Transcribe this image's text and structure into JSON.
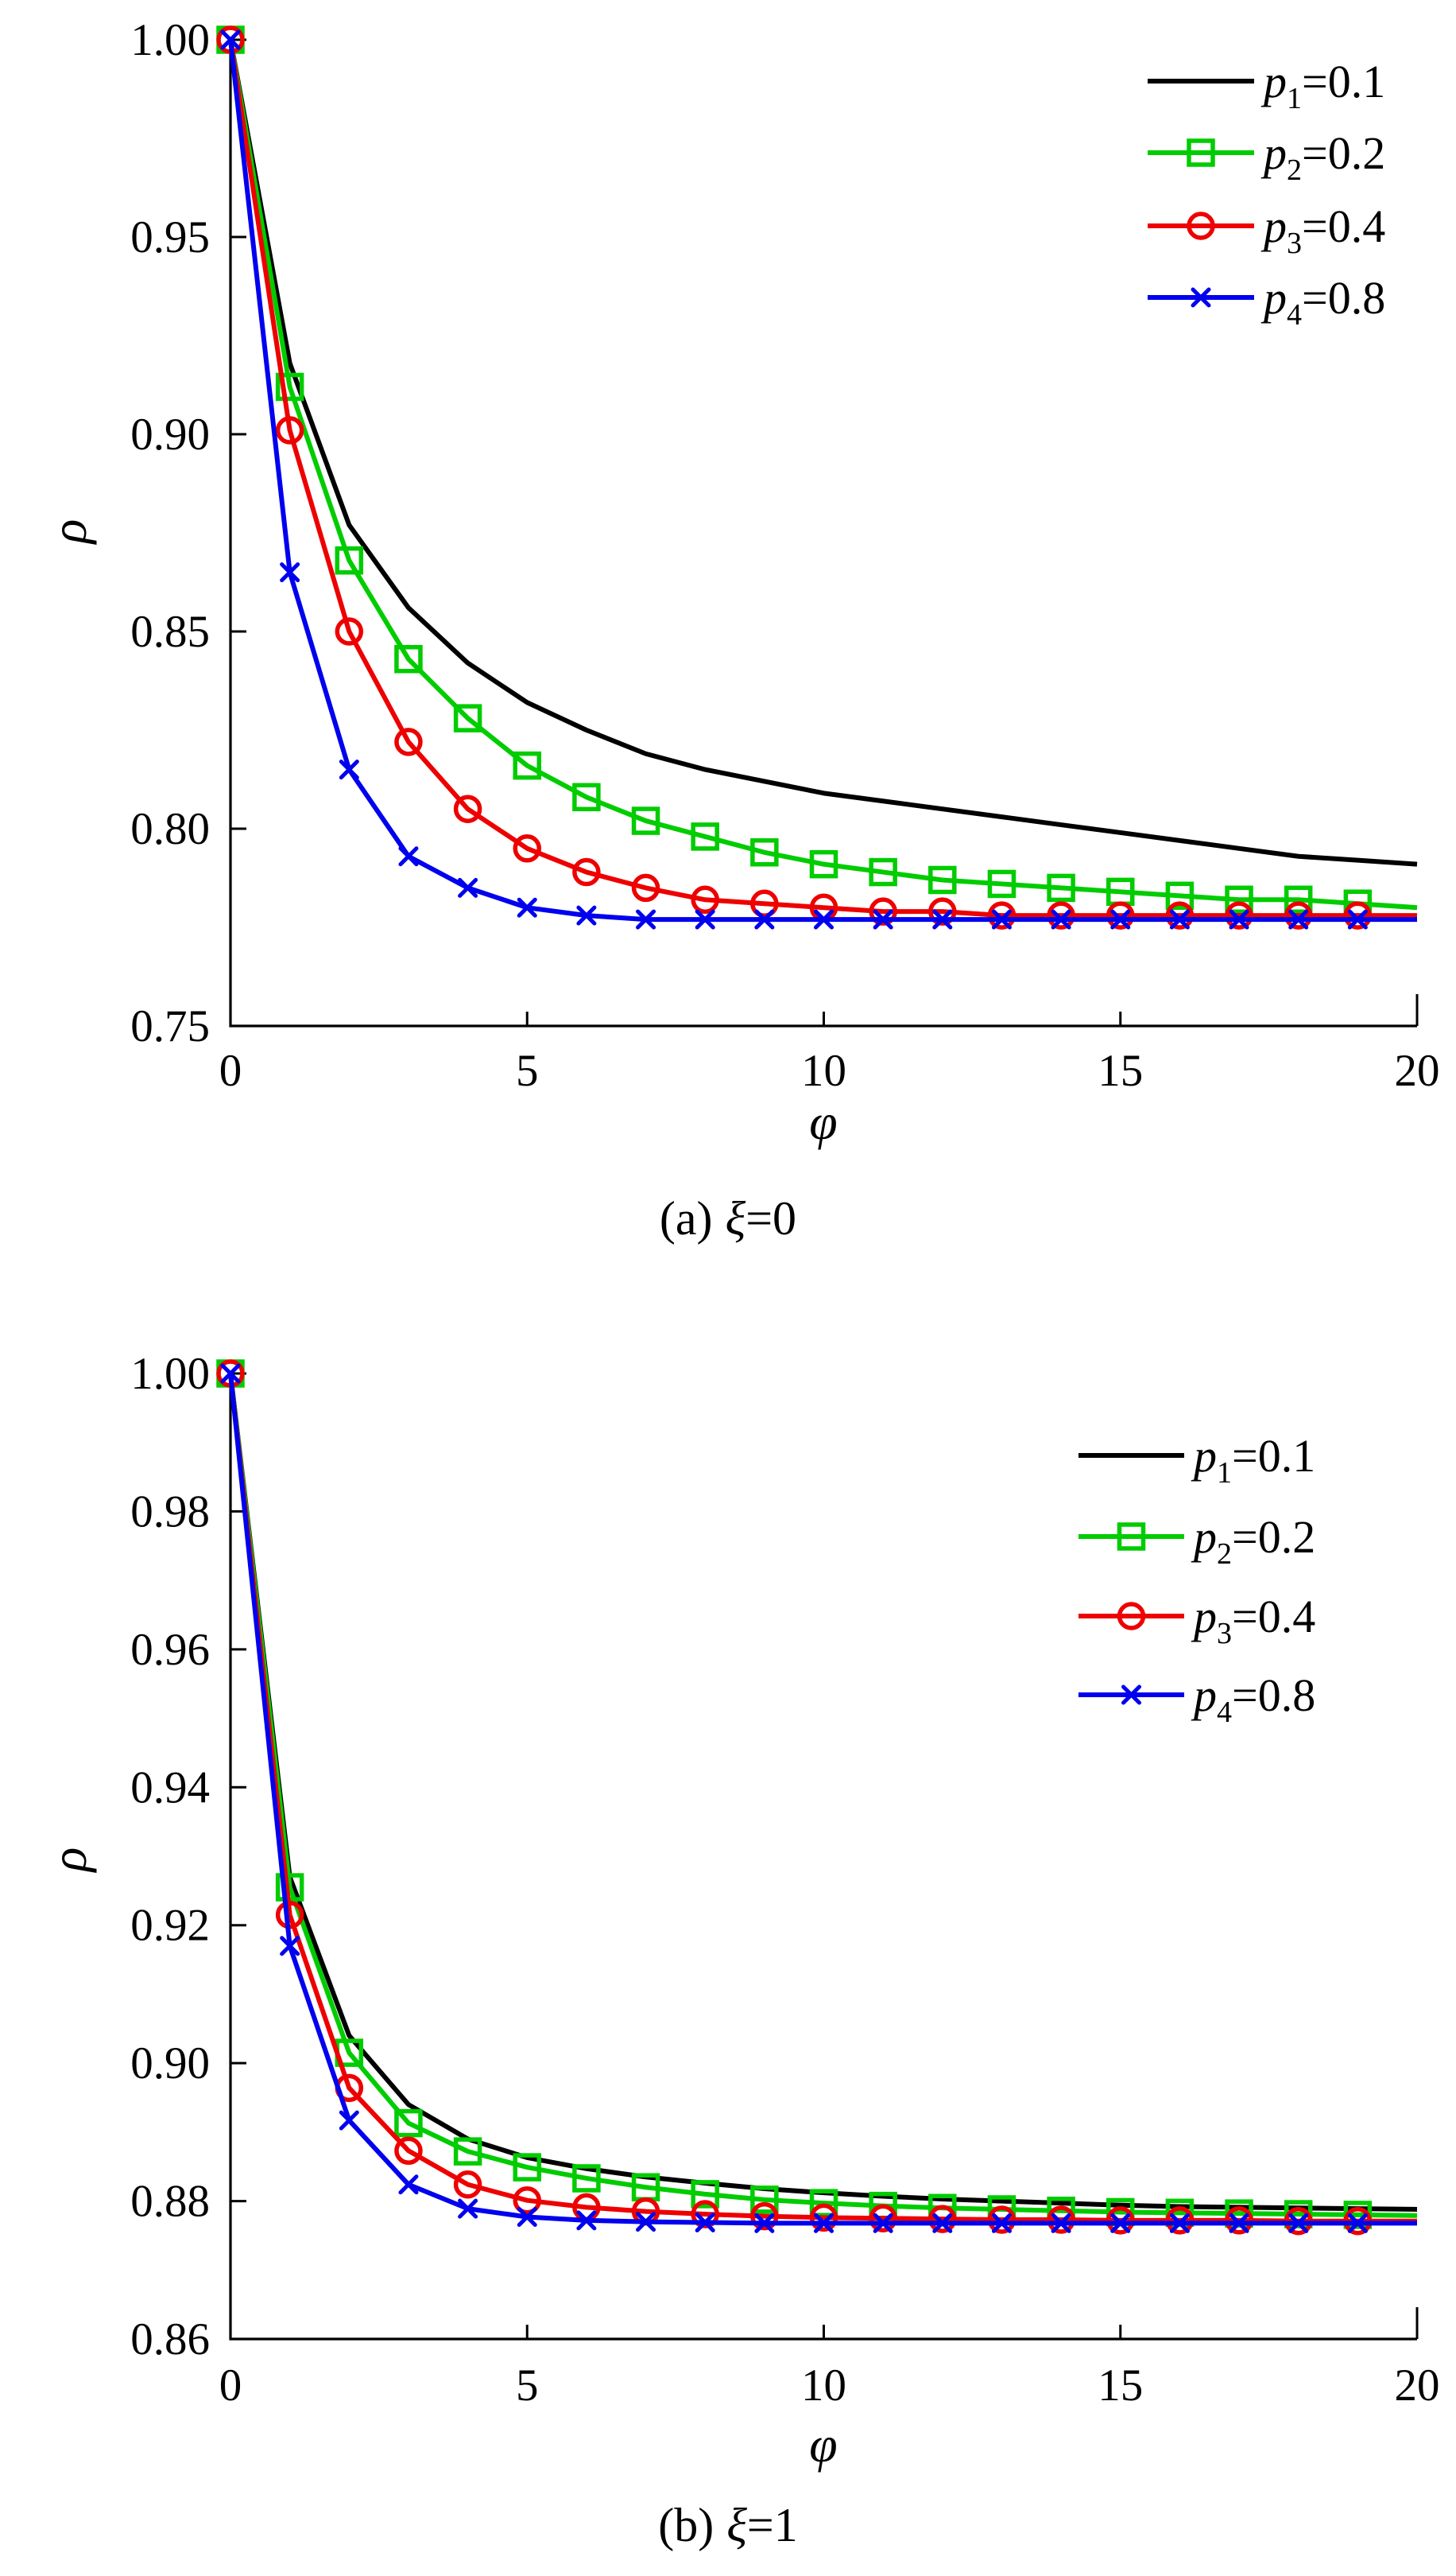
{
  "captions": {
    "a": {
      "prefix": "(a)",
      "var": "ξ",
      "eq": "=0"
    },
    "b": {
      "prefix": "(b)",
      "var": "ξ",
      "eq": "=1"
    }
  },
  "chart_data": [
    {
      "type": "line",
      "title": "(a) ξ=0",
      "xlabel": "φ",
      "ylabel": "ρ",
      "xlim": [
        0,
        20
      ],
      "ylim": [
        0.75,
        1.0
      ],
      "x_ticks": [
        0,
        5,
        10,
        15,
        20
      ],
      "y_ticks": [
        1.0,
        0.95,
        0.9,
        0.85,
        0.8,
        0.75
      ],
      "y_tick_labels": [
        "1.00",
        "0.95",
        "0.90",
        "0.85",
        "0.80",
        "0.75"
      ],
      "grid": false,
      "legend_position": "top-right",
      "x": [
        0,
        1,
        2,
        3,
        4,
        5,
        6,
        7,
        8,
        9,
        10,
        11,
        12,
        13,
        14,
        15,
        16,
        17,
        18,
        19,
        20
      ],
      "series": [
        {
          "name": "p1=0.1",
          "base": "p",
          "sub": "1",
          "rhs": "=0.1",
          "color": "#000000",
          "marker": "none",
          "values": [
            1.0,
            0.918,
            0.877,
            0.856,
            0.842,
            0.832,
            0.825,
            0.819,
            0.815,
            0.812,
            0.809,
            0.807,
            0.805,
            0.803,
            0.801,
            0.799,
            0.797,
            0.795,
            0.793,
            0.792,
            0.791
          ]
        },
        {
          "name": "p2=0.2",
          "base": "p",
          "sub": "2",
          "rhs": "=0.2",
          "color": "#00cc00",
          "marker": "square",
          "values": [
            1.0,
            0.912,
            0.868,
            0.843,
            0.828,
            0.816,
            0.808,
            0.802,
            0.798,
            0.794,
            0.791,
            0.789,
            0.787,
            0.786,
            0.785,
            0.784,
            0.783,
            0.782,
            0.782,
            0.781,
            0.78
          ]
        },
        {
          "name": "p3=0.4",
          "base": "p",
          "sub": "3",
          "rhs": "=0.4",
          "color": "#ee0000",
          "marker": "circle",
          "values": [
            1.0,
            0.901,
            0.85,
            0.822,
            0.805,
            0.795,
            0.789,
            0.785,
            0.782,
            0.781,
            0.78,
            0.779,
            0.779,
            0.778,
            0.778,
            0.778,
            0.778,
            0.778,
            0.778,
            0.778,
            0.778
          ]
        },
        {
          "name": "p4=0.8",
          "base": "p",
          "sub": "4",
          "rhs": "=0.8",
          "color": "#0000ee",
          "marker": "x",
          "values": [
            1.0,
            0.865,
            0.815,
            0.793,
            0.785,
            0.78,
            0.778,
            0.777,
            0.777,
            0.777,
            0.777,
            0.777,
            0.777,
            0.777,
            0.777,
            0.777,
            0.777,
            0.777,
            0.777,
            0.777,
            0.777
          ]
        }
      ]
    },
    {
      "type": "line",
      "title": "(b) ξ=1",
      "xlabel": "φ",
      "ylabel": "ρ",
      "xlim": [
        0,
        20
      ],
      "ylim": [
        0.86,
        1.0
      ],
      "x_ticks": [
        0,
        5,
        10,
        15,
        20
      ],
      "y_ticks": [
        1.0,
        0.98,
        0.96,
        0.94,
        0.92,
        0.9,
        0.88,
        0.86
      ],
      "y_tick_labels": [
        "1.00",
        "0.98",
        "0.96",
        "0.94",
        "0.92",
        "0.90",
        "0.88",
        "0.86"
      ],
      "grid": false,
      "legend_position": "top-right",
      "x": [
        0,
        1,
        2,
        3,
        4,
        5,
        6,
        7,
        8,
        9,
        10,
        11,
        12,
        13,
        14,
        15,
        16,
        17,
        18,
        19,
        20
      ],
      "series": [
        {
          "name": "p1=0.1",
          "base": "p",
          "sub": "1",
          "rhs": "=0.1",
          "color": "#000000",
          "marker": "none",
          "values": [
            1.0,
            0.927,
            0.904,
            0.894,
            0.889,
            0.8863,
            0.8847,
            0.8835,
            0.8826,
            0.8818,
            0.8812,
            0.8807,
            0.8803,
            0.88,
            0.8797,
            0.8794,
            0.8792,
            0.8791,
            0.879,
            0.8789,
            0.8788
          ]
        },
        {
          "name": "p2=0.2",
          "base": "p",
          "sub": "2",
          "rhs": "=0.2",
          "color": "#00cc00",
          "marker": "square",
          "values": [
            1.0,
            0.9255,
            0.9015,
            0.8913,
            0.8872,
            0.8849,
            0.8833,
            0.882,
            0.881,
            0.8802,
            0.8797,
            0.8793,
            0.879,
            0.8788,
            0.8786,
            0.8784,
            0.8783,
            0.8782,
            0.8781,
            0.878,
            0.8779
          ]
        },
        {
          "name": "p3=0.4",
          "base": "p",
          "sub": "3",
          "rhs": "=0.4",
          "color": "#ee0000",
          "marker": "circle",
          "values": [
            1.0,
            0.9215,
            0.8964,
            0.8873,
            0.8824,
            0.8801,
            0.8791,
            0.8785,
            0.8781,
            0.8778,
            0.8776,
            0.8775,
            0.8774,
            0.8773,
            0.8773,
            0.8772,
            0.8772,
            0.8772,
            0.8771,
            0.8771,
            0.8771
          ]
        },
        {
          "name": "p4=0.8",
          "base": "p",
          "sub": "4",
          "rhs": "=0.8",
          "color": "#0000ee",
          "marker": "x",
          "values": [
            1.0,
            0.917,
            0.8917,
            0.8824,
            0.8789,
            0.8777,
            0.8772,
            0.877,
            0.8769,
            0.8768,
            0.8768,
            0.8768,
            0.8768,
            0.8768,
            0.8768,
            0.8768,
            0.8768,
            0.8768,
            0.8768,
            0.8768,
            0.8768
          ]
        }
      ]
    }
  ]
}
